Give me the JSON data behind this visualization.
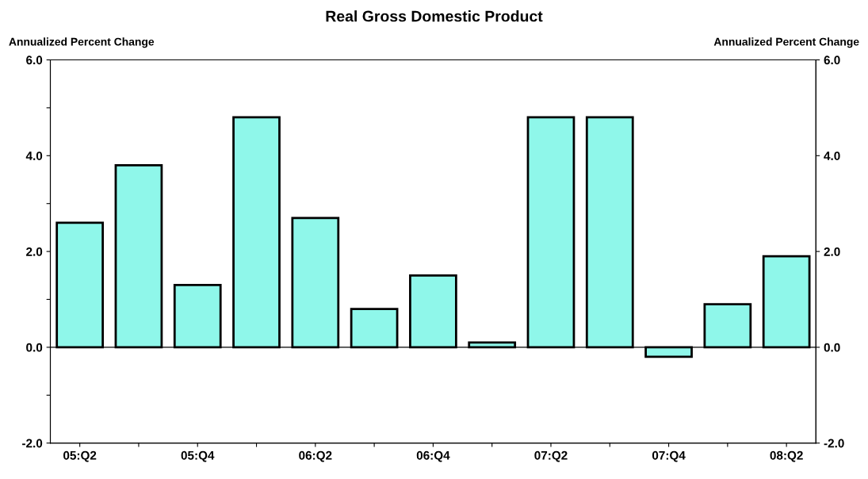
{
  "chart_data": {
    "type": "bar",
    "title": "Real Gross Domestic Product",
    "ylabel": "Annualized Percent Change",
    "y2label": "Annualized Percent Change",
    "categories": [
      "05:Q2",
      null,
      "05:Q4",
      null,
      "06:Q2",
      null,
      "06:Q4",
      null,
      "07:Q2",
      null,
      "07:Q4",
      null,
      "08:Q2"
    ],
    "values": [
      2.6,
      3.8,
      1.3,
      4.8,
      2.7,
      0.8,
      1.5,
      0.1,
      4.8,
      4.8,
      -0.2,
      0.9,
      1.9
    ],
    "color": "#8ff7ea",
    "ylim": [
      -2,
      6
    ],
    "yticks": [
      {
        "value": -2,
        "label": "-2.0"
      },
      {
        "value": -1,
        "label": null
      },
      {
        "value": 0,
        "label": "0.0"
      },
      {
        "value": 1,
        "label": null
      },
      {
        "value": 2,
        "label": "2.0"
      },
      {
        "value": 3,
        "label": null
      },
      {
        "value": 4,
        "label": "4.0"
      },
      {
        "value": 5,
        "label": null
      },
      {
        "value": 6,
        "label": "6.0"
      }
    ],
    "y2lim": [
      -2,
      6
    ],
    "y2ticks": [
      {
        "value": -2,
        "label": "-2.0"
      },
      {
        "value": 0,
        "label": "0.0"
      },
      {
        "value": 2,
        "label": "2.0"
      },
      {
        "value": 4,
        "label": "4.0"
      },
      {
        "value": 6,
        "label": "6.0"
      }
    ],
    "ref_lines": [
      {
        "axis": "y",
        "value": 0,
        "label": null,
        "color": "#000000"
      }
    ],
    "grid": false,
    "legend": false
  }
}
